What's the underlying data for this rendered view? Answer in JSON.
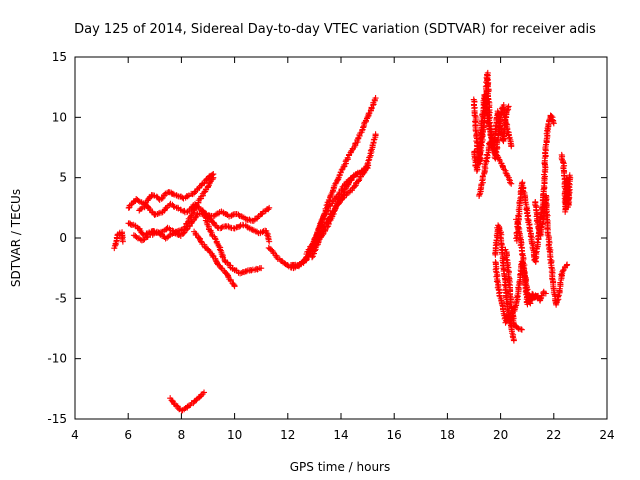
{
  "chart_data": {
    "type": "scatter",
    "title": "Day 125 of 2014, Sidereal Day-to-day VTEC variation (SDTVAR) for receiver adis",
    "xlabel": "GPS time / hours",
    "ylabel": "SDTVAR / TECUs",
    "xlim": [
      4,
      24
    ],
    "ylim": [
      -15,
      15
    ],
    "xticks": [
      4,
      6,
      8,
      10,
      12,
      14,
      16,
      18,
      20,
      22,
      24
    ],
    "yticks": [
      -15,
      -10,
      -5,
      0,
      5,
      10,
      15
    ],
    "grid": false,
    "marker": "+",
    "color": "#ff0000",
    "series": [
      {
        "name": "SDTVAR",
        "traces": [
          [
            [
              5.5,
              -0.8
            ],
            [
              5.6,
              0.3
            ],
            [
              5.75,
              0.5
            ],
            [
              5.8,
              -0.3
            ]
          ],
          [
            [
              6.0,
              2.5
            ],
            [
              6.3,
              3.2
            ],
            [
              6.6,
              2.8
            ],
            [
              6.9,
              3.6
            ],
            [
              7.2,
              3.2
            ],
            [
              7.5,
              3.8
            ],
            [
              7.8,
              3.6
            ],
            [
              8.1,
              3.3
            ],
            [
              8.5,
              3.8
            ],
            [
              8.8,
              4.5
            ],
            [
              9.0,
              5.0
            ],
            [
              9.2,
              5.3
            ]
          ],
          [
            [
              6.0,
              1.2
            ],
            [
              6.3,
              1.0
            ],
            [
              6.6,
              0.2
            ],
            [
              6.9,
              0.6
            ],
            [
              7.2,
              0.4
            ],
            [
              7.5,
              0.8
            ],
            [
              7.8,
              0.5
            ],
            [
              8.1,
              0.8
            ],
            [
              8.4,
              2.0
            ],
            [
              8.7,
              3.2
            ],
            [
              9.0,
              4.3
            ],
            [
              9.2,
              5.0
            ]
          ],
          [
            [
              6.2,
              0.2
            ],
            [
              6.5,
              -0.2
            ],
            [
              6.8,
              0.2
            ],
            [
              7.1,
              0.5
            ],
            [
              7.4,
              0.0
            ],
            [
              7.7,
              0.4
            ],
            [
              8.0,
              0.2
            ],
            [
              8.3,
              1.0
            ],
            [
              8.6,
              2.0
            ],
            [
              8.9,
              2.0
            ],
            [
              9.2,
              1.8
            ],
            [
              9.5,
              2.2
            ],
            [
              9.8,
              1.8
            ],
            [
              10.1,
              2.0
            ],
            [
              10.4,
              1.6
            ],
            [
              10.7,
              1.4
            ],
            [
              11.0,
              2.0
            ],
            [
              11.3,
              2.5
            ]
          ],
          [
            [
              6.4,
              2.3
            ],
            [
              6.7,
              2.7
            ],
            [
              7.0,
              1.9
            ],
            [
              7.3,
              2.2
            ],
            [
              7.6,
              2.8
            ],
            [
              7.9,
              2.4
            ],
            [
              8.2,
              2.1
            ],
            [
              8.5,
              2.8
            ],
            [
              8.8,
              2.2
            ],
            [
              9.1,
              1.5
            ],
            [
              9.4,
              0.8
            ],
            [
              9.7,
              1.0
            ],
            [
              10.0,
              0.8
            ],
            [
              10.3,
              1.1
            ],
            [
              10.6,
              0.8
            ],
            [
              10.9,
              0.4
            ],
            [
              11.2,
              0.6
            ],
            [
              11.3,
              -0.3
            ]
          ],
          [
            [
              8.5,
              0.5
            ],
            [
              8.8,
              -0.5
            ],
            [
              9.1,
              -1.2
            ],
            [
              9.4,
              -2.2
            ],
            [
              9.7,
              -3.0
            ],
            [
              10.0,
              -4.0
            ]
          ],
          [
            [
              8.8,
              2.3
            ],
            [
              9.1,
              0.5
            ],
            [
              9.4,
              -0.6
            ],
            [
              9.6,
              -1.8
            ],
            [
              9.9,
              -2.5
            ],
            [
              10.2,
              -2.9
            ],
            [
              10.5,
              -2.7
            ],
            [
              10.8,
              -2.6
            ],
            [
              11.0,
              -2.5
            ]
          ],
          [
            [
              7.6,
              -13.3
            ],
            [
              7.8,
              -13.9
            ],
            [
              8.0,
              -14.3
            ],
            [
              8.3,
              -13.9
            ],
            [
              8.6,
              -13.3
            ],
            [
              8.85,
              -12.8
            ]
          ],
          [
            [
              11.3,
              -0.8
            ],
            [
              11.6,
              -1.6
            ],
            [
              11.9,
              -2.2
            ],
            [
              12.2,
              -2.5
            ],
            [
              12.5,
              -2.1
            ],
            [
              12.8,
              -1.4
            ],
            [
              13.1,
              0.4
            ],
            [
              13.4,
              2.2
            ],
            [
              13.7,
              4.0
            ],
            [
              14.0,
              5.5
            ],
            [
              14.3,
              6.8
            ],
            [
              14.6,
              8.0
            ],
            [
              14.8,
              9.0
            ],
            [
              15.0,
              10.0
            ],
            [
              15.1,
              10.5
            ],
            [
              15.3,
              11.6
            ]
          ],
          [
            [
              12.1,
              -2.2
            ],
            [
              12.4,
              -2.3
            ],
            [
              12.7,
              -1.8
            ],
            [
              13.0,
              -0.6
            ],
            [
              13.3,
              0.7
            ],
            [
              13.6,
              1.8
            ],
            [
              13.9,
              3.0
            ],
            [
              14.2,
              4.2
            ],
            [
              14.5,
              5.2
            ],
            [
              14.8,
              5.5
            ],
            [
              15.0,
              6.0
            ],
            [
              15.3,
              8.6
            ]
          ],
          [
            [
              12.7,
              -1.3
            ],
            [
              13.0,
              -0.2
            ],
            [
              13.3,
              1.5
            ],
            [
              13.6,
              2.8
            ],
            [
              13.9,
              3.6
            ],
            [
              14.2,
              4.6
            ],
            [
              14.5,
              5.2
            ],
            [
              14.8,
              5.6
            ],
            [
              15.0,
              5.8
            ]
          ],
          [
            [
              12.9,
              -1.6
            ],
            [
              13.2,
              -0.1
            ],
            [
              13.5,
              1.0
            ],
            [
              13.8,
              2.5
            ],
            [
              14.1,
              3.4
            ],
            [
              14.4,
              4.0
            ],
            [
              14.7,
              4.9
            ],
            [
              15.0,
              6.0
            ]
          ],
          [
            [
              19.0,
              11.5
            ],
            [
              19.1,
              8.2
            ],
            [
              19.2,
              6.2
            ],
            [
              19.3,
              8.0
            ],
            [
              19.4,
              10.0
            ],
            [
              19.5,
              13.7
            ],
            [
              19.6,
              9.2
            ],
            [
              19.7,
              8.0
            ],
            [
              19.8,
              6.6
            ],
            [
              19.9,
              8.2
            ],
            [
              20.0,
              10.0
            ],
            [
              20.1,
              11.0
            ],
            [
              20.2,
              9.6
            ],
            [
              20.3,
              8.6
            ],
            [
              20.4,
              7.6
            ]
          ],
          [
            [
              19.0,
              7.2
            ],
            [
              19.1,
              5.6
            ],
            [
              19.2,
              6.6
            ],
            [
              19.3,
              9.8
            ],
            [
              19.4,
              11.9
            ],
            [
              19.5,
              10.0
            ],
            [
              19.6,
              9.0
            ],
            [
              19.7,
              7.5
            ],
            [
              19.8,
              8.5
            ],
            [
              19.9,
              10.5
            ],
            [
              20.0,
              9.2
            ],
            [
              20.1,
              8.0
            ],
            [
              20.2,
              10.2
            ],
            [
              20.3,
              10.9
            ]
          ],
          [
            [
              19.8,
              -2.0
            ],
            [
              19.9,
              -4.0
            ],
            [
              20.0,
              -5.0
            ],
            [
              20.1,
              -6.1
            ],
            [
              20.2,
              -7.0
            ],
            [
              20.3,
              -6.5
            ],
            [
              20.4,
              -7.5
            ],
            [
              20.5,
              -8.5
            ]
          ],
          [
            [
              19.8,
              -1.4
            ],
            [
              19.9,
              1.0
            ],
            [
              20.0,
              0.5
            ],
            [
              20.1,
              -2.0
            ],
            [
              20.2,
              -4.5
            ],
            [
              20.3,
              -6.4
            ],
            [
              20.4,
              -6.9
            ],
            [
              20.5,
              -6.0
            ],
            [
              20.6,
              -5.5
            ],
            [
              20.7,
              -3.8
            ],
            [
              20.8,
              -2.0
            ],
            [
              20.9,
              -3.0
            ],
            [
              21.0,
              -5.5
            ],
            [
              21.1,
              -4.8
            ],
            [
              21.2,
              -5.0
            ],
            [
              21.3,
              -4.8
            ],
            [
              21.4,
              -5.0
            ]
          ],
          [
            [
              20.6,
              1.5
            ],
            [
              20.7,
              0.6
            ],
            [
              20.8,
              -1.0
            ],
            [
              20.9,
              -2.8
            ],
            [
              21.0,
              -4.4
            ],
            [
              21.1,
              -5.4
            ],
            [
              21.2,
              -4.6
            ],
            [
              21.3,
              -5.0
            ],
            [
              21.4,
              -4.8
            ],
            [
              21.5,
              -5.2
            ],
            [
              21.6,
              -4.5
            ],
            [
              21.7,
              -4.6
            ]
          ],
          [
            [
              20.2,
              -1.0
            ],
            [
              20.3,
              -3.0
            ],
            [
              20.4,
              -5.5
            ],
            [
              20.5,
              -7.2
            ],
            [
              20.6,
              -7.4
            ],
            [
              20.7,
              -7.5
            ],
            [
              20.8,
              -7.6
            ]
          ],
          [
            [
              20.6,
              -0.2
            ],
            [
              20.7,
              2.3
            ],
            [
              20.8,
              4.6
            ],
            [
              20.9,
              3.6
            ],
            [
              21.0,
              2.0
            ],
            [
              21.1,
              0.8
            ],
            [
              21.2,
              -0.5
            ],
            [
              21.3,
              -2.0
            ],
            [
              21.4,
              -0.3
            ],
            [
              21.5,
              1.8
            ],
            [
              21.6,
              2.8
            ],
            [
              21.7,
              7.5
            ],
            [
              21.8,
              9.5
            ],
            [
              21.9,
              10.2
            ],
            [
              22.0,
              9.5
            ]
          ],
          [
            [
              21.3,
              3.0
            ],
            [
              21.4,
              1.0
            ],
            [
              21.5,
              0.2
            ],
            [
              21.6,
              1.5
            ],
            [
              21.7,
              3.5
            ],
            [
              21.8,
              0.0
            ],
            [
              21.9,
              -2.0
            ],
            [
              22.0,
              -4.5
            ],
            [
              22.1,
              -5.5
            ],
            [
              22.2,
              -4.7
            ],
            [
              22.3,
              -3.0
            ],
            [
              22.4,
              -2.5
            ],
            [
              22.5,
              -2.2
            ]
          ],
          [
            [
              22.3,
              6.9
            ],
            [
              22.4,
              5.5
            ],
            [
              22.45,
              2.2
            ],
            [
              22.5,
              5.0
            ],
            [
              22.55,
              2.6
            ],
            [
              22.6,
              5.2
            ]
          ],
          [
            [
              19.2,
              3.5
            ],
            [
              19.3,
              4.5
            ],
            [
              19.6,
              8.0
            ],
            [
              20.4,
              4.5
            ]
          ]
        ]
      }
    ]
  }
}
